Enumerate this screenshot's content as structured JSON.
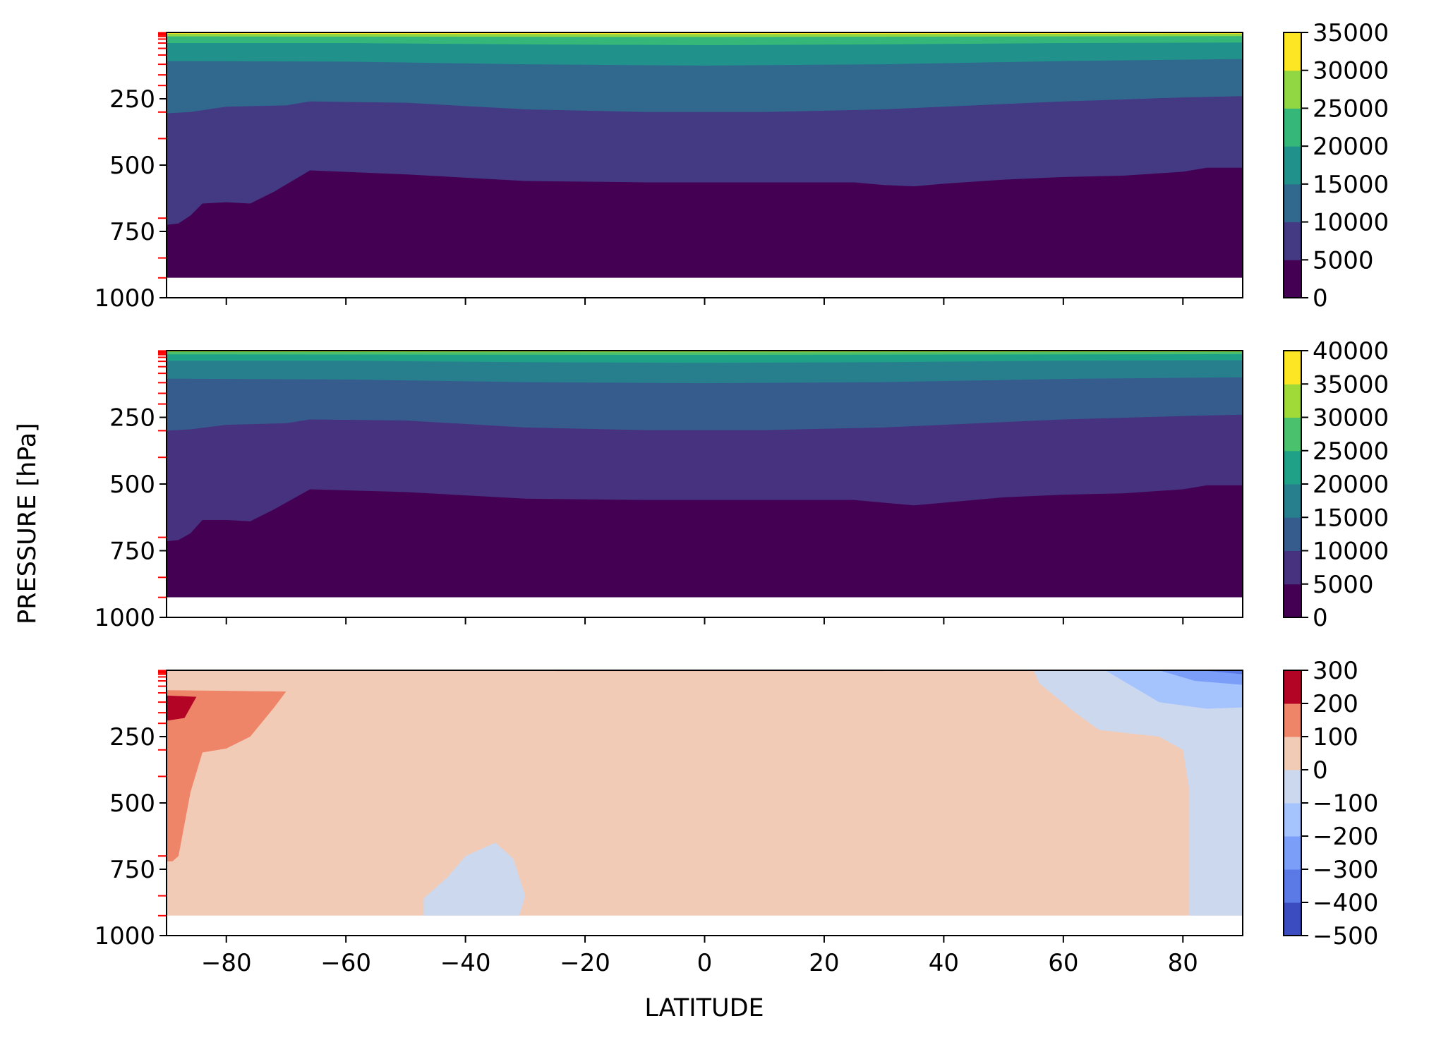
{
  "figure": {
    "ylabel": "PRESSURE [hPa]",
    "xlabel": "LATITUDE"
  },
  "chart_data": [
    {
      "type": "contourf",
      "title": "",
      "xlabel": "",
      "ylabel": "",
      "xlim": [
        -90,
        90
      ],
      "ylim": [
        1000,
        0
      ],
      "x_ticks": [
        -80,
        -60,
        -40,
        -20,
        0,
        20,
        40,
        60,
        80
      ],
      "x_tick_labels_shown": false,
      "y_ticks": [
        250,
        500,
        750,
        1000
      ],
      "y_tick_labels": [
        "250",
        "500",
        "750",
        "1000"
      ],
      "model_levels_hpa": [
        1,
        3,
        7,
        10,
        15,
        25,
        40,
        60,
        85,
        120,
        160,
        200,
        300,
        400,
        700,
        850,
        925
      ],
      "data_bottom_hpa": 925,
      "colorbar": {
        "cmap": "viridis",
        "levels": [
          0,
          5000,
          10000,
          15000,
          20000,
          25000,
          30000,
          35000
        ],
        "tick_labels": [
          "35000",
          "30000",
          "25000",
          "20000",
          "15000",
          "10000",
          "5000",
          "0"
        ],
        "colors": [
          "#440154",
          "#443983",
          "#31688e",
          "#21918c",
          "#35b779",
          "#90d743",
          "#fde725"
        ]
      },
      "contours": [
        {
          "level": 5000,
          "lat": [
            -90,
            -88,
            -86,
            -84,
            -80,
            -76,
            -72,
            -66,
            -50,
            -30,
            -10,
            10,
            25,
            30,
            35,
            40,
            50,
            60,
            70,
            80,
            84,
            90
          ],
          "pressure": [
            725,
            720,
            690,
            645,
            640,
            645,
            600,
            520,
            535,
            560,
            565,
            565,
            565,
            575,
            580,
            570,
            555,
            545,
            540,
            525,
            510,
            510
          ]
        },
        {
          "level": 10000,
          "lat": [
            -90,
            -86,
            -80,
            -70,
            -66,
            -50,
            -30,
            -10,
            10,
            30,
            40,
            50,
            60,
            80,
            90
          ],
          "pressure": [
            305,
            300,
            280,
            275,
            260,
            265,
            290,
            300,
            300,
            290,
            280,
            270,
            260,
            245,
            240
          ]
        },
        {
          "level": 15000,
          "lat": [
            -90,
            -60,
            -30,
            0,
            30,
            60,
            90
          ],
          "pressure": [
            108,
            110,
            120,
            125,
            120,
            108,
            100
          ]
        },
        {
          "level": 20000,
          "lat": [
            -90,
            -60,
            -30,
            0,
            30,
            60,
            90
          ],
          "pressure": [
            40,
            40,
            45,
            48,
            45,
            40,
            38
          ]
        },
        {
          "level": 25000,
          "lat": [
            -90,
            0,
            90
          ],
          "pressure": [
            15,
            17,
            14
          ]
        },
        {
          "level": 30000,
          "lat": [
            -90,
            0,
            90
          ],
          "pressure": [
            5,
            6,
            5
          ]
        }
      ]
    },
    {
      "type": "contourf",
      "title": "",
      "xlabel": "",
      "ylabel": "",
      "xlim": [
        -90,
        90
      ],
      "ylim": [
        1000,
        0
      ],
      "x_ticks": [
        -80,
        -60,
        -40,
        -20,
        0,
        20,
        40,
        60,
        80
      ],
      "x_tick_labels_shown": false,
      "y_ticks": [
        250,
        500,
        750,
        1000
      ],
      "y_tick_labels": [
        "250",
        "500",
        "750",
        "1000"
      ],
      "model_levels_hpa": [
        1,
        3,
        7,
        10,
        15,
        25,
        40,
        60,
        85,
        120,
        160,
        200,
        300,
        400,
        700,
        850,
        925
      ],
      "data_bottom_hpa": 925,
      "colorbar": {
        "cmap": "viridis",
        "levels": [
          0,
          5000,
          10000,
          15000,
          20000,
          25000,
          30000,
          35000,
          40000
        ],
        "tick_labels": [
          "40000",
          "35000",
          "30000",
          "25000",
          "20000",
          "15000",
          "10000",
          "5000",
          "0"
        ],
        "colors": [
          "#440154",
          "#46327e",
          "#365c8d",
          "#277f8e",
          "#1fa187",
          "#4ac16d",
          "#a0da39",
          "#fde725"
        ]
      },
      "contours": [
        {
          "level": 5000,
          "lat": [
            -90,
            -88,
            -86,
            -84,
            -80,
            -76,
            -72,
            -66,
            -50,
            -30,
            -10,
            10,
            25,
            30,
            35,
            40,
            50,
            60,
            70,
            80,
            84,
            90
          ],
          "pressure": [
            715,
            710,
            685,
            635,
            635,
            640,
            595,
            520,
            530,
            555,
            560,
            560,
            560,
            570,
            580,
            570,
            550,
            540,
            535,
            520,
            505,
            505
          ]
        },
        {
          "level": 10000,
          "lat": [
            -90,
            -86,
            -80,
            -70,
            -66,
            -50,
            -30,
            -10,
            10,
            30,
            40,
            50,
            60,
            80,
            90
          ],
          "pressure": [
            300,
            295,
            278,
            272,
            258,
            262,
            288,
            298,
            298,
            288,
            278,
            268,
            258,
            245,
            240
          ]
        },
        {
          "level": 15000,
          "lat": [
            -90,
            -60,
            -30,
            0,
            30,
            60,
            90
          ],
          "pressure": [
            105,
            108,
            118,
            122,
            118,
            106,
            100
          ]
        },
        {
          "level": 20000,
          "lat": [
            -90,
            -60,
            -30,
            0,
            30,
            60,
            90
          ],
          "pressure": [
            38,
            38,
            43,
            46,
            43,
            38,
            36
          ]
        },
        {
          "level": 25000,
          "lat": [
            -90,
            0,
            90
          ],
          "pressure": [
            14,
            16,
            13
          ]
        },
        {
          "level": 30000,
          "lat": [
            -90,
            0,
            90
          ],
          "pressure": [
            5,
            6,
            5
          ]
        }
      ]
    },
    {
      "type": "contourf",
      "title": "",
      "xlabel": "LATITUDE",
      "ylabel": "",
      "xlim": [
        -90,
        90
      ],
      "ylim": [
        1000,
        0
      ],
      "x_ticks": [
        -80,
        -60,
        -40,
        -20,
        0,
        20,
        40,
        60,
        80
      ],
      "x_tick_labels": [
        "−80",
        "−60",
        "−40",
        "−20",
        "0",
        "20",
        "40",
        "60",
        "80"
      ],
      "y_ticks": [
        250,
        500,
        750,
        1000
      ],
      "y_tick_labels": [
        "250",
        "500",
        "750",
        "1000"
      ],
      "model_levels_hpa": [
        1,
        3,
        7,
        10,
        15,
        25,
        40,
        60,
        85,
        120,
        160,
        200,
        300,
        400,
        700,
        850,
        925
      ],
      "data_bottom_hpa": 925,
      "colorbar": {
        "cmap": "coolwarm",
        "levels": [
          -500,
          -400,
          -300,
          -200,
          -100,
          0,
          100,
          200,
          300
        ],
        "tick_labels": [
          "300",
          "200",
          "100",
          "0",
          "−100",
          "−200",
          "−300",
          "−400",
          "−500"
        ],
        "colors": [
          "#3b4cc0",
          "#5b7ae5",
          "#7b9ff9",
          "#a5c4fe",
          "#cbd8ee",
          "#f2cbb7",
          "#ee8468",
          "#b40426"
        ]
      },
      "regions": [
        {
          "range": [
            0,
            100
          ],
          "lat": [
            -90,
            90,
            90,
            -90
          ],
          "pressure": [
            0,
            0,
            925,
            925
          ]
        },
        {
          "range": [
            100,
            200
          ],
          "lat": [
            -90,
            -70,
            -72,
            -76,
            -80,
            -84,
            -86,
            -88,
            -89,
            -90
          ],
          "pressure": [
            75,
            80,
            140,
            250,
            295,
            310,
            460,
            700,
            720,
            720
          ]
        },
        {
          "range": [
            200,
            300
          ],
          "lat": [
            -90,
            -85,
            -87,
            -90
          ],
          "pressure": [
            95,
            100,
            180,
            190
          ]
        },
        {
          "range": [
            100,
            200
          ],
          "lat": [
            -25,
            30,
            30,
            -25
          ],
          "pressure": [
            0,
            0,
            3,
            3
          ]
        },
        {
          "range": [
            -100,
            0
          ],
          "lat": [
            55,
            90,
            90,
            81,
            81,
            80,
            76,
            66,
            62,
            56
          ],
          "pressure": [
            0,
            0,
            925,
            925,
            440,
            300,
            250,
            225,
            160,
            50
          ]
        },
        {
          "range": [
            -200,
            -100
          ],
          "lat": [
            67,
            90,
            90,
            84,
            76,
            70
          ],
          "pressure": [
            0,
            0,
            140,
            145,
            120,
            40
          ]
        },
        {
          "range": [
            -300,
            -200
          ],
          "lat": [
            76,
            90,
            90,
            82
          ],
          "pressure": [
            0,
            0,
            55,
            40
          ]
        },
        {
          "range": [
            -400,
            -300
          ],
          "lat": [
            83,
            90,
            90
          ],
          "pressure": [
            0,
            0,
            15
          ]
        },
        {
          "range": [
            -100,
            0
          ],
          "lat": [
            -47,
            -43,
            -40,
            -35,
            -32,
            -30,
            -31,
            -47
          ],
          "pressure": [
            860,
            780,
            700,
            650,
            710,
            850,
            925,
            925
          ]
        }
      ]
    }
  ]
}
